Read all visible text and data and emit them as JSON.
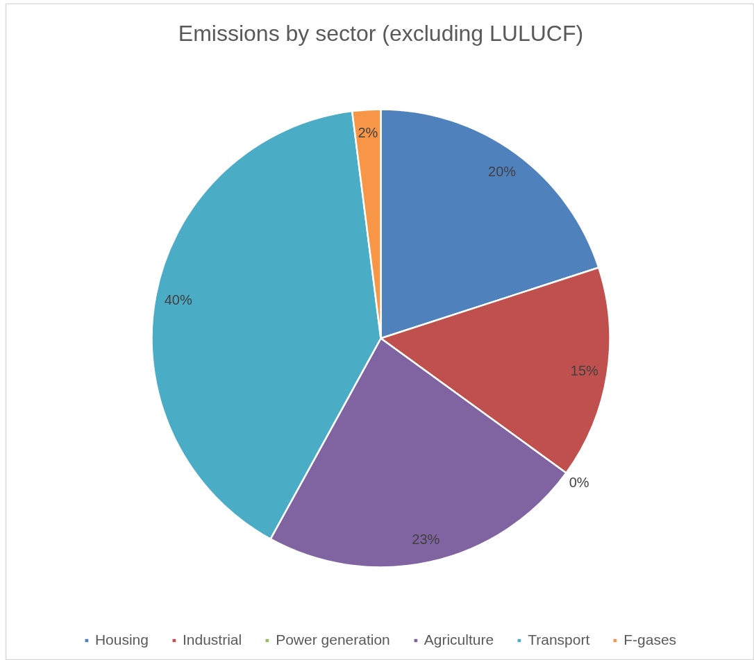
{
  "chart_data": {
    "type": "pie",
    "title": "Emissions by sector (excluding LULUCF)",
    "categories": [
      "Housing",
      "Industrial",
      "Power generation",
      "Agriculture",
      "Transport",
      "F-gases"
    ],
    "values": [
      20,
      15,
      0,
      23,
      40,
      2
    ],
    "colors": [
      "#4f81bd",
      "#c0504d",
      "#9bbb59",
      "#8064a2",
      "#4bacc6",
      "#f79646"
    ],
    "value_labels": [
      "20%",
      "15%",
      "0%",
      "23%",
      "40%",
      "2%"
    ],
    "legend": "bottom"
  }
}
